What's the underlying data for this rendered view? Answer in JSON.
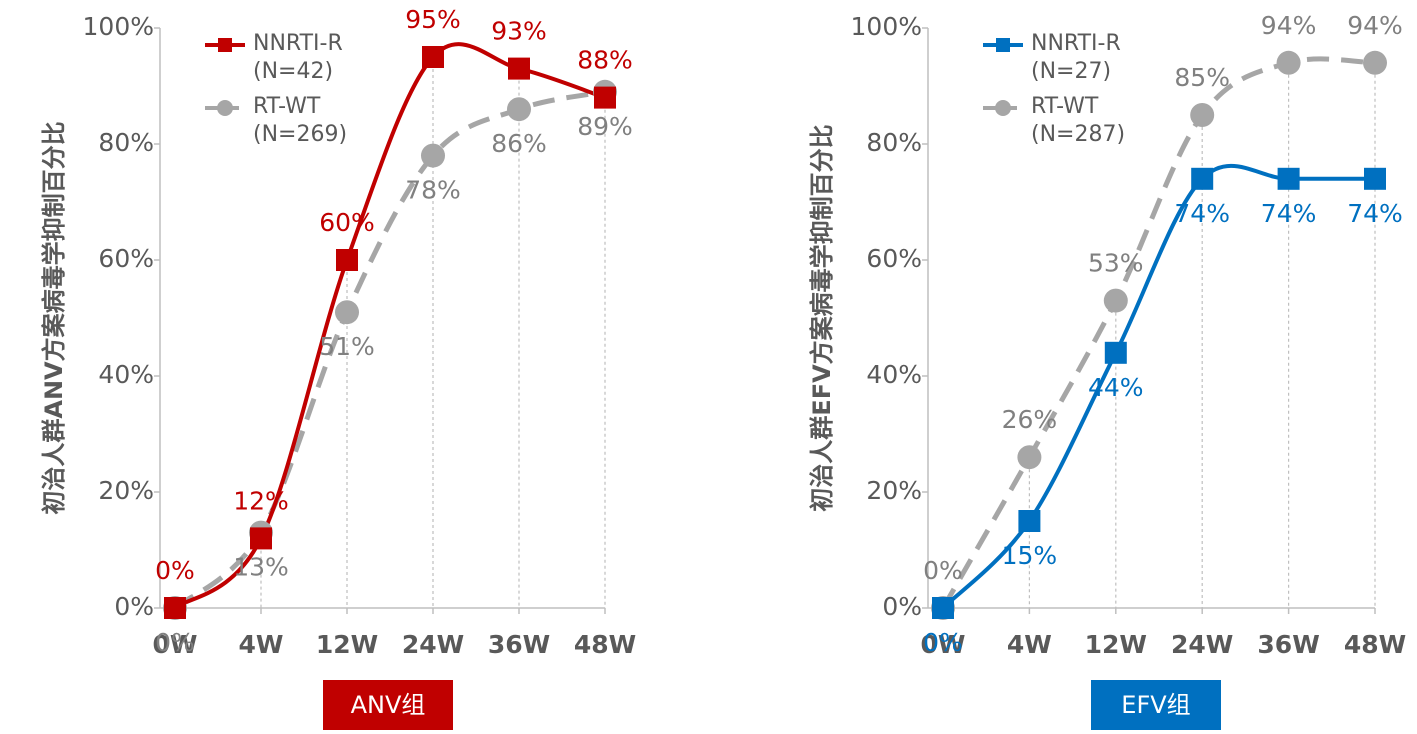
{
  "chart_data": [
    {
      "type": "line",
      "y_label": "初治人群ANV方案病毒学抑制百分比",
      "group_label": "ANV组",
      "group_color": "#c00000",
      "categories": [
        "0W",
        "4W",
        "12W",
        "24W",
        "36W",
        "48W"
      ],
      "ylim": [
        0,
        100
      ],
      "yticks": [
        {
          "value": 0,
          "label": "0%"
        },
        {
          "value": 20,
          "label": "20%"
        },
        {
          "value": 40,
          "label": "40%"
        },
        {
          "value": 60,
          "label": "60%"
        },
        {
          "value": 80,
          "label": "80%"
        },
        {
          "value": 100,
          "label": "100%"
        }
      ],
      "series": [
        {
          "name": "NNRTI-R\n(N=42)",
          "color": "#c00000",
          "marker": "square",
          "dashed": false,
          "label_position": "above",
          "values": [
            0,
            12,
            60,
            95,
            93,
            88
          ],
          "value_labels": [
            "0%",
            "12%",
            "60%",
            "95%",
            "93%",
            "88%"
          ]
        },
        {
          "name": "RT-WT\n(N=269)",
          "color": "#a6a6a6",
          "label_color": "#808080",
          "marker": "circle",
          "dashed": true,
          "label_position": "below",
          "values": [
            0,
            13,
            51,
            78,
            86,
            89
          ],
          "value_labels": [
            "0%",
            "13%",
            "51%",
            "78%",
            "86%",
            "89%"
          ]
        }
      ]
    },
    {
      "type": "line",
      "y_label": "初治人群EFV方案病毒学抑制百分比",
      "group_label": "EFV组",
      "group_color": "#0070c0",
      "categories": [
        "0W",
        "4W",
        "12W",
        "24W",
        "36W",
        "48W"
      ],
      "ylim": [
        0,
        100
      ],
      "yticks": [
        {
          "value": 0,
          "label": "0%"
        },
        {
          "value": 20,
          "label": "20%"
        },
        {
          "value": 40,
          "label": "40%"
        },
        {
          "value": 60,
          "label": "60%"
        },
        {
          "value": 80,
          "label": "80%"
        },
        {
          "value": 100,
          "label": "100%"
        }
      ],
      "series": [
        {
          "name": "NNRTI-R\n(N=27)",
          "color": "#0070c0",
          "marker": "square",
          "dashed": false,
          "label_position": "below",
          "values": [
            0,
            15,
            44,
            74,
            74,
            74
          ],
          "value_labels": [
            "0%",
            "15%",
            "44%",
            "74%",
            "74%",
            "74%"
          ]
        },
        {
          "name": "RT-WT\n(N=287)",
          "color": "#a6a6a6",
          "label_color": "#808080",
          "marker": "circle",
          "dashed": true,
          "label_position": "above",
          "values": [
            0,
            26,
            53,
            85,
            94,
            94
          ],
          "value_labels": [
            "0%",
            "26%",
            "53%",
            "85%",
            "94%",
            "94%"
          ]
        }
      ]
    }
  ]
}
